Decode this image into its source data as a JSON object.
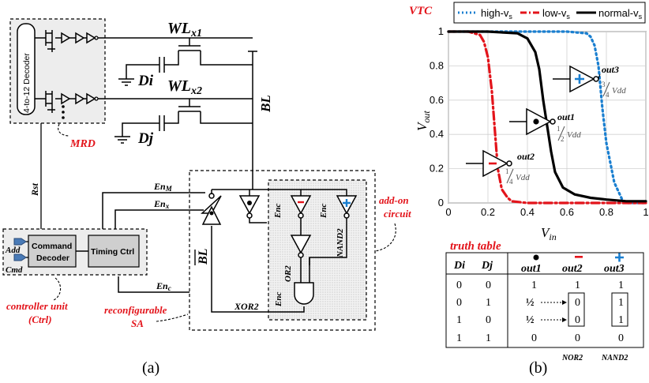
{
  "panel_a": {
    "caption": "(a)",
    "decoder_label": "4-to-12 Decoder",
    "mrd_label": "MRD",
    "wl1_main": "WL",
    "wl1_sub": "x1",
    "wl2_main": "WL",
    "wl2_sub": "x2",
    "di_label": "Di",
    "dj_label": "Dj",
    "bl_label": "BL",
    "blbar_label": "BL",
    "rst_label": "Rst",
    "enm_main": "En",
    "enm_sub": "M",
    "enx_main": "En",
    "enx_sub": "x",
    "enc_main": "En",
    "enc_sub": "c",
    "enc_vertical": [
      "Enc",
      "Enc",
      "Enc"
    ],
    "or2_label": "OR2",
    "nand2_label": "NAND2",
    "xor2_label": "XOR2",
    "addon_label": [
      "add-on",
      "circuit"
    ],
    "reconfig_label": [
      "reconfigurable",
      "SA"
    ],
    "controller": {
      "add_label": "Add",
      "cmd_label": "Cmd",
      "command_decoder": [
        "Command",
        "Decoder"
      ],
      "timing_ctrl": "Timing Ctrl",
      "title": [
        "controller unit",
        "(Ctrl)"
      ]
    }
  },
  "panel_b": {
    "caption": "(b)",
    "vtc_label": "VTC",
    "legend": [
      "high-v",
      "low-v",
      "normal-v"
    ],
    "legend_sub": "s",
    "inverters": [
      {
        "name": "out3",
        "frac_num": "3",
        "frac_den": "4",
        "vdd": "Vdd",
        "mark": "+"
      },
      {
        "name": "out1",
        "frac_num": "1",
        "frac_den": "2",
        "vdd": "Vdd",
        "mark": "dot"
      },
      {
        "name": "out2",
        "frac_num": "1",
        "frac_den": "4",
        "vdd": "Vdd",
        "mark": "-"
      }
    ],
    "truth_table": {
      "title": "truth table",
      "headers": [
        "Di",
        "Dj",
        "out1",
        "out2",
        "out3"
      ],
      "rows": [
        [
          "0",
          "0",
          "1",
          "1",
          "1"
        ],
        [
          "0",
          "1",
          "½",
          "0",
          "1"
        ],
        [
          "1",
          "0",
          "½",
          "0",
          "1"
        ],
        [
          "1",
          "1",
          "0",
          "0",
          "0"
        ]
      ],
      "footer": [
        "NOR2",
        "NAND2"
      ]
    }
  },
  "chart_data": {
    "type": "line",
    "title": "",
    "xlabel": "V_in",
    "ylabel": "V_out",
    "xlim": [
      0,
      1
    ],
    "ylim": [
      0,
      1
    ],
    "xticks": [
      "0",
      "0.2",
      "0.4",
      "0.6",
      "0.8",
      "1"
    ],
    "yticks": [
      "0",
      "0.2",
      "0.4",
      "0.6",
      "0.8",
      "1"
    ],
    "grid": true,
    "legend_position": "top",
    "series": [
      {
        "name": "high-v_s",
        "color": "#1a7fd0",
        "style": "dotted",
        "x": [
          0,
          0.4,
          0.6,
          0.7,
          0.72,
          0.74,
          0.76,
          0.78,
          0.8,
          0.84,
          0.88,
          0.9,
          1
        ],
        "y": [
          1,
          1,
          1,
          0.99,
          0.97,
          0.92,
          0.8,
          0.55,
          0.35,
          0.12,
          0.02,
          0,
          0
        ]
      },
      {
        "name": "low-v_s",
        "color": "#e3141b",
        "style": "dashdot",
        "x": [
          0,
          0.1,
          0.16,
          0.18,
          0.2,
          0.22,
          0.23,
          0.24,
          0.25,
          0.27,
          0.3,
          0.32,
          0.4,
          1
        ],
        "y": [
          1,
          1,
          0.98,
          0.94,
          0.85,
          0.65,
          0.5,
          0.35,
          0.2,
          0.08,
          0.03,
          0.01,
          0,
          0
        ]
      },
      {
        "name": "normal-v_s",
        "color": "#000000",
        "style": "solid",
        "x": [
          0,
          0.2,
          0.35,
          0.4,
          0.44,
          0.46,
          0.48,
          0.5,
          0.52,
          0.54,
          0.58,
          0.64,
          0.72,
          0.8,
          0.9,
          1
        ],
        "y": [
          1,
          1,
          0.99,
          0.96,
          0.88,
          0.78,
          0.6,
          0.45,
          0.3,
          0.18,
          0.09,
          0.05,
          0.03,
          0.02,
          0.01,
          0.01
        ]
      }
    ]
  }
}
